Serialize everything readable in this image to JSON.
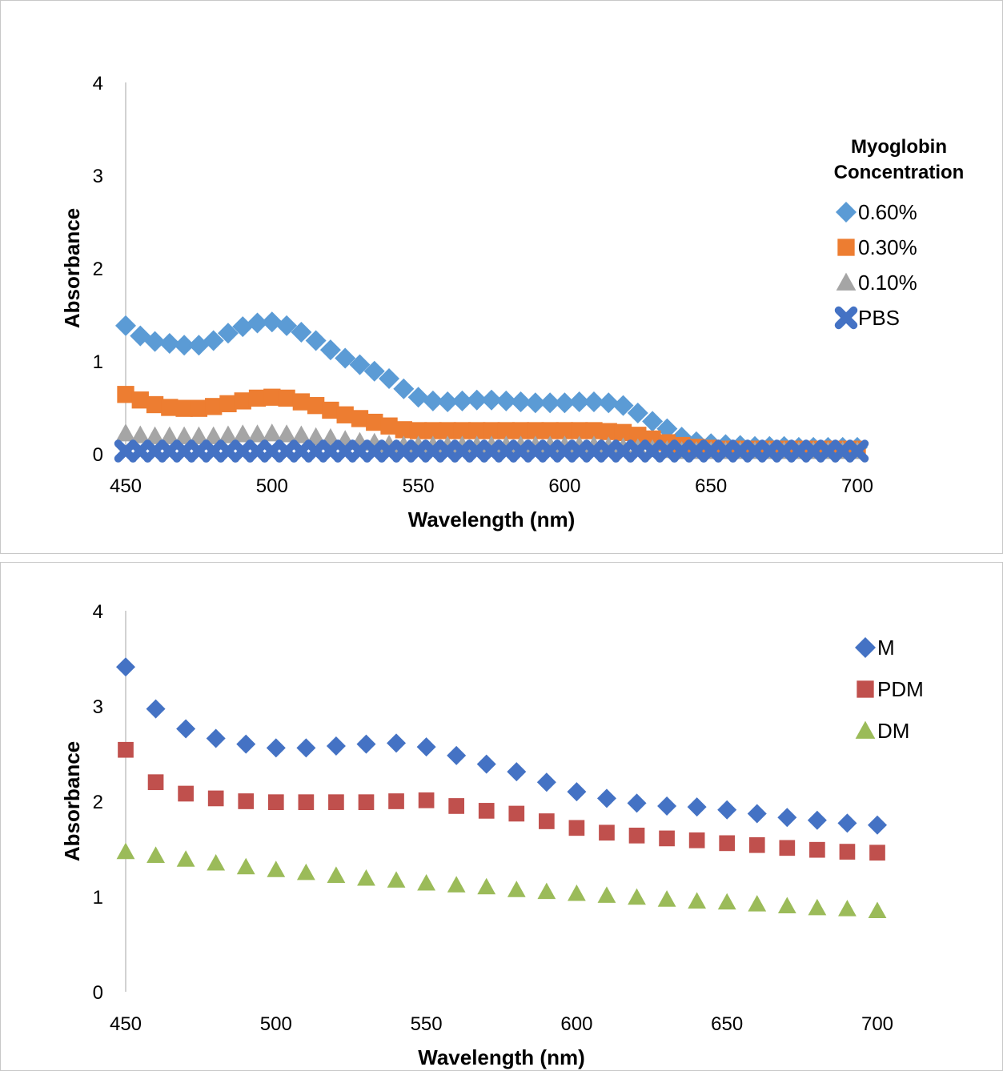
{
  "chart_data": [
    {
      "type": "scatter",
      "title": "",
      "xlabel": "Wavelength (nm)",
      "ylabel": "Absorbance",
      "xlim": [
        450,
        700
      ],
      "ylim": [
        0,
        4
      ],
      "x_ticks": [
        "450",
        "500",
        "550",
        "600",
        "650",
        "700"
      ],
      "y_ticks": [
        "0",
        "1",
        "2",
        "3",
        "4"
      ],
      "grid": false,
      "legend_position": "right",
      "legend_title": [
        "Myoglobin",
        "Concentration"
      ],
      "x_step": 5,
      "series": [
        {
          "name": "0.60%",
          "marker": "diamond",
          "color": "#5B9BD5",
          "values": [
            1.38,
            1.27,
            1.21,
            1.19,
            1.17,
            1.17,
            1.22,
            1.3,
            1.37,
            1.41,
            1.42,
            1.38,
            1.31,
            1.22,
            1.12,
            1.03,
            0.96,
            0.89,
            0.81,
            0.7,
            0.61,
            0.57,
            0.56,
            0.57,
            0.58,
            0.58,
            0.57,
            0.56,
            0.55,
            0.55,
            0.55,
            0.56,
            0.56,
            0.55,
            0.52,
            0.44,
            0.35,
            0.27,
            0.18,
            0.13,
            0.11,
            0.1,
            0.09,
            0.08,
            0.08,
            0.08,
            0.07,
            0.07,
            0.07,
            0.07,
            0.07
          ]
        },
        {
          "name": "0.30%",
          "marker": "square",
          "color": "#ED7D31",
          "values": [
            0.64,
            0.58,
            0.53,
            0.5,
            0.49,
            0.49,
            0.51,
            0.54,
            0.57,
            0.6,
            0.61,
            0.6,
            0.56,
            0.52,
            0.47,
            0.42,
            0.38,
            0.34,
            0.3,
            0.26,
            0.25,
            0.25,
            0.25,
            0.25,
            0.25,
            0.25,
            0.25,
            0.25,
            0.25,
            0.25,
            0.25,
            0.25,
            0.25,
            0.24,
            0.23,
            0.2,
            0.16,
            0.12,
            0.09,
            0.07,
            0.06,
            0.05,
            0.05,
            0.05,
            0.05,
            0.05,
            0.05,
            0.05,
            0.05,
            0.05,
            0.05
          ]
        },
        {
          "name": "0.10%",
          "marker": "triangle",
          "color": "#A5A5A5",
          "values": [
            0.22,
            0.2,
            0.19,
            0.19,
            0.19,
            0.19,
            0.19,
            0.2,
            0.21,
            0.21,
            0.22,
            0.21,
            0.2,
            0.18,
            0.17,
            0.15,
            0.13,
            0.12,
            0.1,
            0.09,
            0.09,
            0.09,
            0.09,
            0.09,
            0.09,
            0.09,
            0.09,
            0.09,
            0.09,
            0.09,
            0.09,
            0.09,
            0.09,
            0.08,
            0.07,
            0.06,
            0.05,
            0.04,
            0.03,
            0.03,
            0.03,
            0.03,
            0.03,
            0.03,
            0.03,
            0.03,
            0.03,
            0.03,
            0.03,
            0.03,
            0.03
          ]
        },
        {
          "name": "PBS",
          "marker": "x",
          "color": "#4472C4",
          "values": [
            0.03,
            0.03,
            0.03,
            0.03,
            0.03,
            0.03,
            0.03,
            0.03,
            0.03,
            0.03,
            0.03,
            0.03,
            0.03,
            0.03,
            0.03,
            0.03,
            0.03,
            0.03,
            0.03,
            0.03,
            0.03,
            0.03,
            0.03,
            0.03,
            0.03,
            0.03,
            0.03,
            0.03,
            0.03,
            0.03,
            0.03,
            0.03,
            0.03,
            0.03,
            0.03,
            0.03,
            0.03,
            0.03,
            0.03,
            0.03,
            0.03,
            0.03,
            0.03,
            0.03,
            0.03,
            0.03,
            0.03,
            0.03,
            0.03,
            0.03,
            0.03
          ]
        }
      ]
    },
    {
      "type": "scatter",
      "title": "",
      "xlabel": "Wavelength (nm)",
      "ylabel": "Absorbance",
      "xlim": [
        450,
        700
      ],
      "ylim": [
        0,
        4
      ],
      "x_ticks": [
        "450",
        "500",
        "550",
        "600",
        "650",
        "700"
      ],
      "y_ticks": [
        "0",
        "1",
        "2",
        "3",
        "4"
      ],
      "grid": false,
      "legend_position": "top-right",
      "x_step": 10,
      "series": [
        {
          "name": "M",
          "marker": "diamond",
          "color": "#4472C4",
          "values": [
            3.41,
            2.97,
            2.76,
            2.66,
            2.6,
            2.56,
            2.56,
            2.58,
            2.6,
            2.61,
            2.57,
            2.48,
            2.39,
            2.31,
            2.2,
            2.1,
            2.03,
            1.98,
            1.95,
            1.94,
            1.91,
            1.87,
            1.83,
            1.8,
            1.77,
            1.75
          ]
        },
        {
          "name": "PDM",
          "marker": "square",
          "color": "#C0504D",
          "values": [
            2.54,
            2.2,
            2.08,
            2.03,
            2.0,
            1.99,
            1.99,
            1.99,
            1.99,
            2.0,
            2.01,
            1.95,
            1.9,
            1.87,
            1.79,
            1.72,
            1.67,
            1.64,
            1.61,
            1.59,
            1.56,
            1.54,
            1.51,
            1.49,
            1.47,
            1.46
          ]
        },
        {
          "name": "DM",
          "marker": "triangle",
          "color": "#9BBB59",
          "values": [
            1.47,
            1.43,
            1.39,
            1.35,
            1.31,
            1.28,
            1.25,
            1.22,
            1.19,
            1.17,
            1.14,
            1.12,
            1.1,
            1.07,
            1.05,
            1.03,
            1.01,
            0.99,
            0.97,
            0.95,
            0.94,
            0.92,
            0.9,
            0.88,
            0.87,
            0.85
          ]
        }
      ]
    }
  ]
}
